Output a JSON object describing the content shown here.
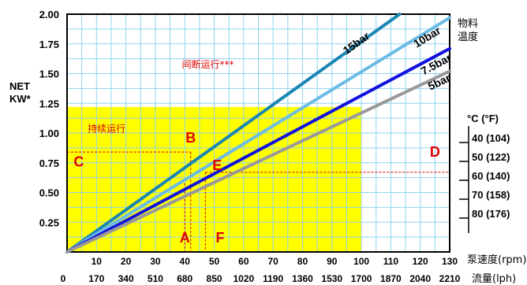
{
  "chart_data": {
    "type": "line",
    "ylabel_line1": "NET",
    "ylabel_line2": "KW*",
    "ylim": [
      0,
      2
    ],
    "yticks": [
      "0.25",
      "0.50",
      "0.75",
      "1.00",
      "1.25",
      "1.50",
      "1.75",
      "2.00"
    ],
    "xlim": [
      0,
      130
    ],
    "xticks": [
      "10",
      "20",
      "30",
      "40",
      "50",
      "60",
      "70",
      "80",
      "90",
      "100",
      "110",
      "120",
      "130"
    ],
    "xlabel": "泵速度(rpm)",
    "flow_ticks": [
      "0",
      "170",
      "340",
      "510",
      "680",
      "850",
      "1020",
      "1190",
      "1360",
      "1530",
      "1700",
      "1870",
      "2040",
      "2210"
    ],
    "flow_label": "流量(lph)",
    "temp_title": [
      "物料",
      "温度"
    ],
    "temp_header": "°C  (°F)",
    "temp_items": [
      "40 (104)",
      "50 (122)",
      "60 (140)",
      "70 (158)",
      "80 (176)"
    ],
    "continuous_zone": {
      "label": "持续运行",
      "x_max": 100,
      "y_max": 1.22,
      "color": "#ffff00"
    },
    "intermittent_label": "间断运行***",
    "series": [
      {
        "name": "15bar",
        "color": "#1a86b4",
        "points": [
          [
            0,
            0
          ],
          [
            113,
            2.0
          ]
        ]
      },
      {
        "name": "10bar",
        "color": "#6bbbe6",
        "points": [
          [
            0,
            0
          ],
          [
            130,
            1.97
          ]
        ]
      },
      {
        "name": "7.5bar",
        "color": "#1111dd",
        "points": [
          [
            0,
            0
          ],
          [
            130,
            1.71
          ]
        ]
      },
      {
        "name": "5bar",
        "color": "#999999",
        "points": [
          [
            0,
            0
          ],
          [
            130,
            1.52
          ]
        ]
      }
    ],
    "points": [
      {
        "label": "A",
        "x": 40,
        "y": 0.08
      },
      {
        "label": "B",
        "x": 42,
        "y": 0.92
      },
      {
        "label": "C",
        "x": 4,
        "y": 0.72
      },
      {
        "label": "D",
        "x": 125,
        "y": 0.8
      },
      {
        "label": "E",
        "x": 51,
        "y": 0.69
      },
      {
        "label": "F",
        "x": 52,
        "y": 0.08
      }
    ],
    "guides": [
      {
        "from": [
          0,
          0.84
        ],
        "to": [
          42,
          0.84
        ]
      },
      {
        "from": [
          42,
          0.84
        ],
        "to": [
          42,
          0
        ]
      },
      {
        "from": [
          40,
          0.61
        ],
        "to": [
          40,
          0
        ]
      },
      {
        "from": [
          47,
          0.67
        ],
        "to": [
          130,
          0.67
        ]
      },
      {
        "from": [
          47,
          0.67
        ],
        "to": [
          47,
          0
        ]
      }
    ],
    "grid": true
  }
}
